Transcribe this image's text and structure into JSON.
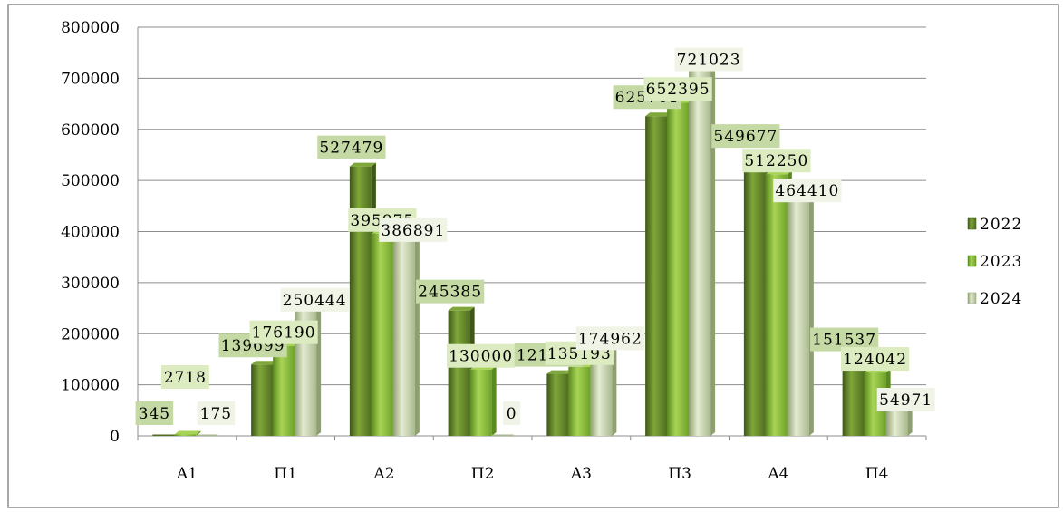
{
  "chart_data": {
    "type": "bar",
    "categories": [
      "A1",
      "П1",
      "A2",
      "П2",
      "A3",
      "П3",
      "A4",
      "П4"
    ],
    "series": [
      {
        "name": "2022",
        "values": [
          345,
          139699,
          527479,
          245385,
          121372,
          625761,
          549677,
          151537
        ]
      },
      {
        "name": "2023",
        "values": [
          2718,
          176190,
          395975,
          130000,
          135193,
          652395,
          512250,
          124042
        ]
      },
      {
        "name": "2024",
        "values": [
          175,
          250444,
          386891,
          0,
          174962,
          721023,
          464410,
          54971
        ]
      }
    ],
    "ylim": [
      0,
      800000
    ],
    "yticks": [
      "0",
      "100000",
      "200000",
      "300000",
      "400000",
      "500000",
      "600000",
      "700000",
      "800000"
    ],
    "grid": true,
    "legend": "right",
    "colors": {
      "s2022": [
        "#4f6e1f",
        "#7fa63a",
        "#3e5717"
      ],
      "s2023": [
        "#6ea22a",
        "#a8d455",
        "#5a8a1f"
      ],
      "s2024": [
        "#a9b98e",
        "#e4ecd2",
        "#8fa070"
      ],
      "label_2022": "#c5d9a4",
      "label_2023": "#dcebc0",
      "label_2024": "#f0f4e6"
    }
  }
}
